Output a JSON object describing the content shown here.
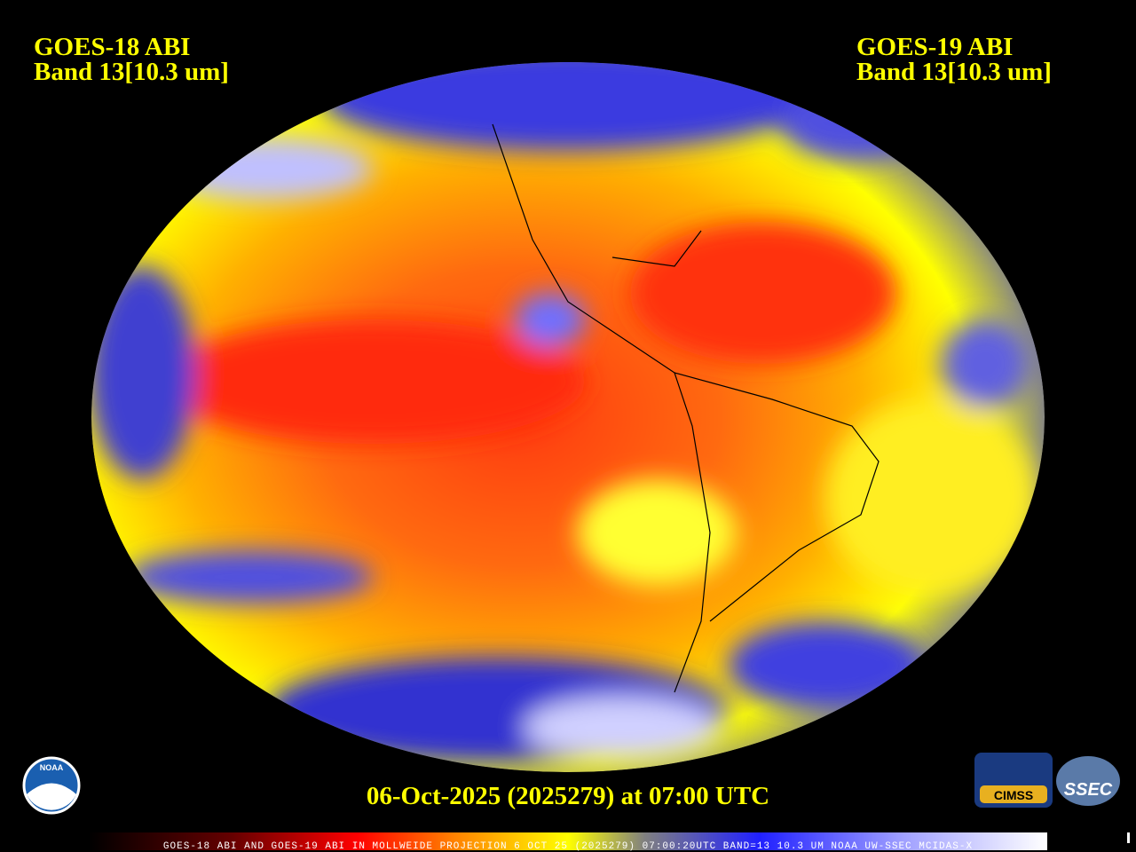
{
  "header": {
    "left": {
      "satellite": "GOES-18 ABI",
      "band": "Band 13[10.3 um]"
    },
    "right": {
      "satellite": "GOES-19 ABI",
      "band": "Band 13[10.3 um]"
    }
  },
  "caption": "06-Oct-2025 (2025279) at 07:00 UTC",
  "footer": "GOES-18 ABI AND GOES-19 ABI IN MOLLWEIDE PROJECTION 6 OCT 25 (2025279) 07:00:20UTC BAND=13 10.3 UM NOAA UW-SSEC MCIDAS-X",
  "logos": {
    "noaa": "NOAA",
    "cimss": "CIMSS",
    "ssec": "SSEC"
  }
}
